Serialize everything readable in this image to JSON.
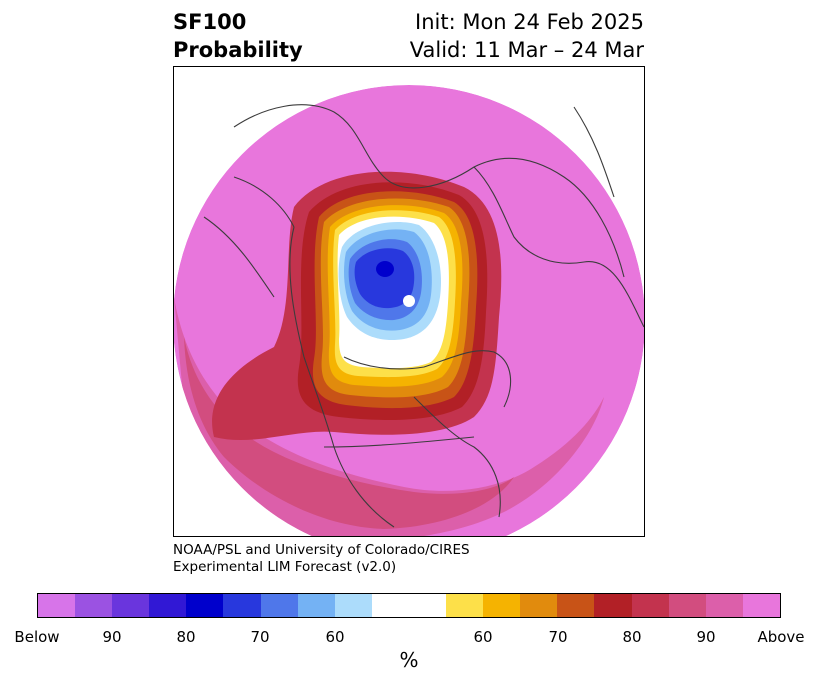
{
  "header": {
    "variable": "SF100",
    "field": "Probability",
    "init": "Init: Mon 24 Feb 2025",
    "valid": "Valid: 11 Mar – 24 Mar"
  },
  "credit": {
    "line1": "NOAA/PSL and University of Colorado/CIRES",
    "line2": "Experimental LIM Forecast (v2.0)"
  },
  "colorbar": {
    "colors": [
      "#d774e9",
      "#9b52e2",
      "#6a35dd",
      "#3118d5",
      "#0000cc",
      "#2838dd",
      "#4f77ea",
      "#74b2f4",
      "#acdcfb",
      "#ffffff",
      "#ffffff",
      "#fde049",
      "#f5b301",
      "#e18b0d",
      "#c85317",
      "#b22026",
      "#c3334e",
      "#d24d7f",
      "#dc5faa",
      "#e876dc"
    ],
    "tick_labels": [
      "Below",
      "90",
      "80",
      "70",
      "60",
      "60",
      "70",
      "80",
      "90",
      "Above"
    ],
    "unit": "%"
  },
  "map": {
    "projection": "north-polar stereographic",
    "field_colors": {
      "above_max": "#e876dc",
      "above_90": "#dc5faa",
      "above_85": "#d24d7f",
      "above_80": "#c3334e",
      "above_75": "#b22026",
      "above_70": "#c85317",
      "above_65": "#e18b0d",
      "above_60": "#f5b301",
      "above_55": "#fde049",
      "neutral": "#ffffff",
      "below_55": "#acdcfb",
      "below_60": "#74b2f4",
      "below_65": "#4f77ea",
      "below_70": "#2838dd",
      "below_max": "#0000cc"
    },
    "coastline_color": "#3c3c3c"
  }
}
